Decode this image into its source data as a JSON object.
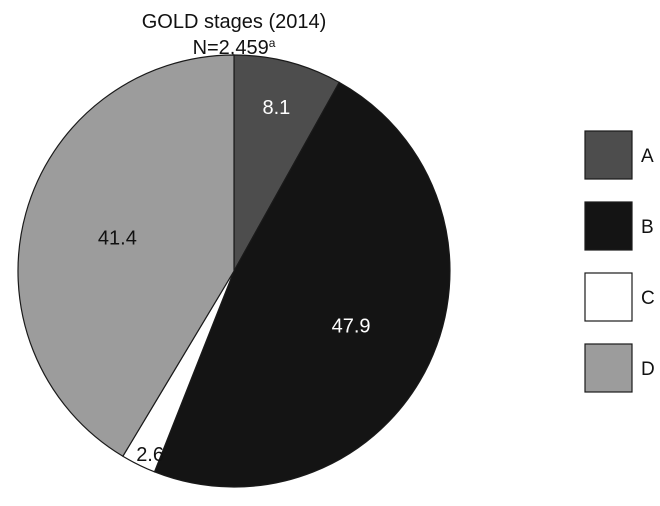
{
  "chart_data": {
    "type": "pie",
    "title": "GOLD stages (2014)",
    "subtitle": "N=2,459",
    "subtitle_superscript": "a",
    "categories": [
      "A",
      "B",
      "C",
      "D"
    ],
    "values": [
      8.1,
      47.9,
      2.6,
      41.4
    ],
    "value_labels": [
      "8.1",
      "47.9",
      "2.6",
      "41.4"
    ],
    "colors": [
      "#4d4d4d",
      "#141414",
      "#ffffff",
      "#9c9c9c"
    ],
    "label_colors": [
      "#ffffff",
      "#ffffff",
      "#111111",
      "#111111"
    ],
    "start_angle": "12 o'clock",
    "direction": "clockwise",
    "legend_position": "right"
  }
}
